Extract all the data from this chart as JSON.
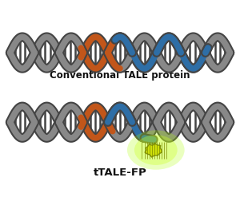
{
  "title1": "Conventional TALE protein",
  "title2": "tTALE-FP",
  "dna_color": "#888888",
  "dna_dark": "#444444",
  "dna_light": "#aaaaaa",
  "tale_orange": "#C2561A",
  "tale_blue": "#2E6EA6",
  "fp_fill": "#CCDD00",
  "fp_outline": "#7A8800",
  "fp_glow": "#BBFF33",
  "background": "#ffffff",
  "title1_fontsize": 8.5,
  "title2_fontsize": 9.5,
  "fig_width": 3.0,
  "fig_height": 2.57,
  "dpi": 100
}
